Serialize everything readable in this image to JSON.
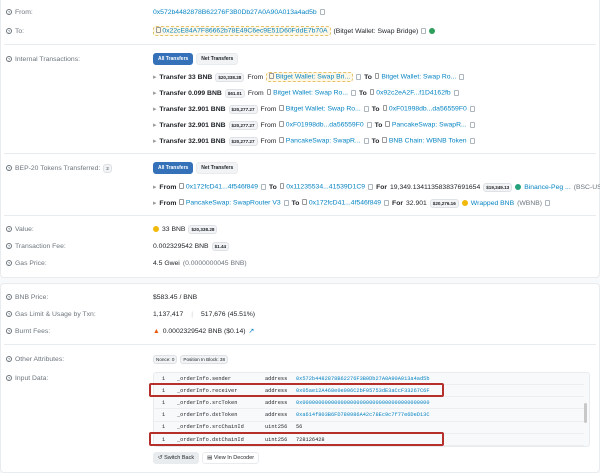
{
  "from": {
    "label": "From:",
    "address": "0x572b4482878B62276F3B0Db27A0A90A013a4ad5b"
  },
  "to": {
    "label": "To:",
    "address": "0x22cE84A7F86662b78E49C6ec9E51D60FddE7b70A",
    "name": "(Bitget Wallet: Swap Bridge)"
  },
  "internal": {
    "label": "Internal Transactions:",
    "tab_all": "All Transfers",
    "tab_net": "Net Transfers",
    "rows": [
      {
        "amount": "Transfer 33 BNB",
        "usd": "$20,338.28",
        "from": "Bitget Wallet: Swap Bri...",
        "to": "Bitget Wallet: Swap Ro..."
      },
      {
        "amount": "Transfer 0.099 BNB",
        "usd": "$61.01",
        "from": "Bitget Wallet: Swap Ro...",
        "to": "0x92c2eA2F...f1D4162fb"
      },
      {
        "amount": "Transfer 32.901 BNB",
        "usd": "$20,277.27",
        "from": "Bitget Wallet: Swap Ro...",
        "to": "0xF01998db...da56559F0"
      },
      {
        "amount": "Transfer 32.901 BNB",
        "usd": "$20,277.27",
        "from": "0xF01998db...da56559F0",
        "to": "PancakeSwap: SwapR..."
      },
      {
        "amount": "Transfer 32.901 BNB",
        "usd": "$20,277.27",
        "from": "PancakeSwap: SwapR...",
        "to": "BNB Chain: WBNB Token"
      }
    ],
    "from_word": "From",
    "to_word": "To"
  },
  "bep20": {
    "label": "BEP-20 Tokens Transferred:",
    "count": "2",
    "tab_all": "All Transfers",
    "tab_net": "Net Transfers",
    "rows": [
      {
        "from": "0x172fcD41...4f546f849",
        "to": "0x11235534...41539D1C9",
        "amount": "19,349.134113583837691654",
        "usd": "$19,349.13",
        "token": "Binance-Peg ...",
        "symbol": "(BSC-US...)"
      },
      {
        "from": "PancakeSwap: SwapRouter V3",
        "to": "0x172fcD41...4f546f849",
        "amount": "32.901",
        "usd": "$20,276.16",
        "token": "Wrapped BNB",
        "symbol": "(WBNB)"
      }
    ],
    "for_word": "For"
  },
  "value": {
    "label": "Value:",
    "amount": "33 BNB",
    "usd": "$20,338.28"
  },
  "fee": {
    "label": "Transaction Fee:",
    "amount": "0.002329542 BNB",
    "usd": "$1.44"
  },
  "gas_price": {
    "label": "Gas Price:",
    "value": "4.5 Gwei",
    "bnb": "(0.0000000045 BNB)"
  },
  "bnb_price": {
    "label": "BNB Price:",
    "value": "$583.45 / BNB"
  },
  "gas_limit": {
    "label": "Gas Limit & Usage by Txn:",
    "limit": "1,137,417",
    "sep": "|",
    "usage": "517,676 (45.51%)"
  },
  "burnt": {
    "label": "Burnt Fees:",
    "value": "0.0002329542 BNB ($0.14)"
  },
  "other": {
    "label": "Other Attributes:",
    "nonce": "Nonce: 0",
    "position": "Position In Block: 38"
  },
  "input": {
    "label": "Input Data:",
    "rows": [
      {
        "i": "1",
        "name": "_orderInfo.sender",
        "type": "address",
        "value": "0x572b4482878B62276F3B0Db27A0A90A013a4ad5b",
        "highlight": false
      },
      {
        "i": "1",
        "name": "_orderInfo.receiver",
        "type": "address",
        "value": "0x05ae12A468e0e006C2bF05753dE3aCcF33267C6F",
        "highlight": true
      },
      {
        "i": "1",
        "name": "_orderInfo.srcToken",
        "type": "address",
        "value": "0x0000000000000000000000000000000000000000",
        "highlight": false
      },
      {
        "i": "1",
        "name": "_orderInfo.dstToken",
        "type": "address",
        "value": "0xa614f803B6FD780986A42c78Ec9c7f77e6DeD13C",
        "highlight": false
      },
      {
        "i": "1",
        "name": "_orderInfo.srcChainId",
        "type": "uint256",
        "value": "56",
        "highlight": false
      },
      {
        "i": "1",
        "name": "_orderInfo.dstChainId",
        "type": "uint256",
        "value": "728126428",
        "highlight": true
      }
    ],
    "switch_back": "Switch Back",
    "view_decoder": "View In Decoder"
  },
  "colors": {
    "link": "#0784c3",
    "accent": "#3471b8",
    "highlight_box": "#b5302a",
    "verified": "#2e9e5b"
  }
}
